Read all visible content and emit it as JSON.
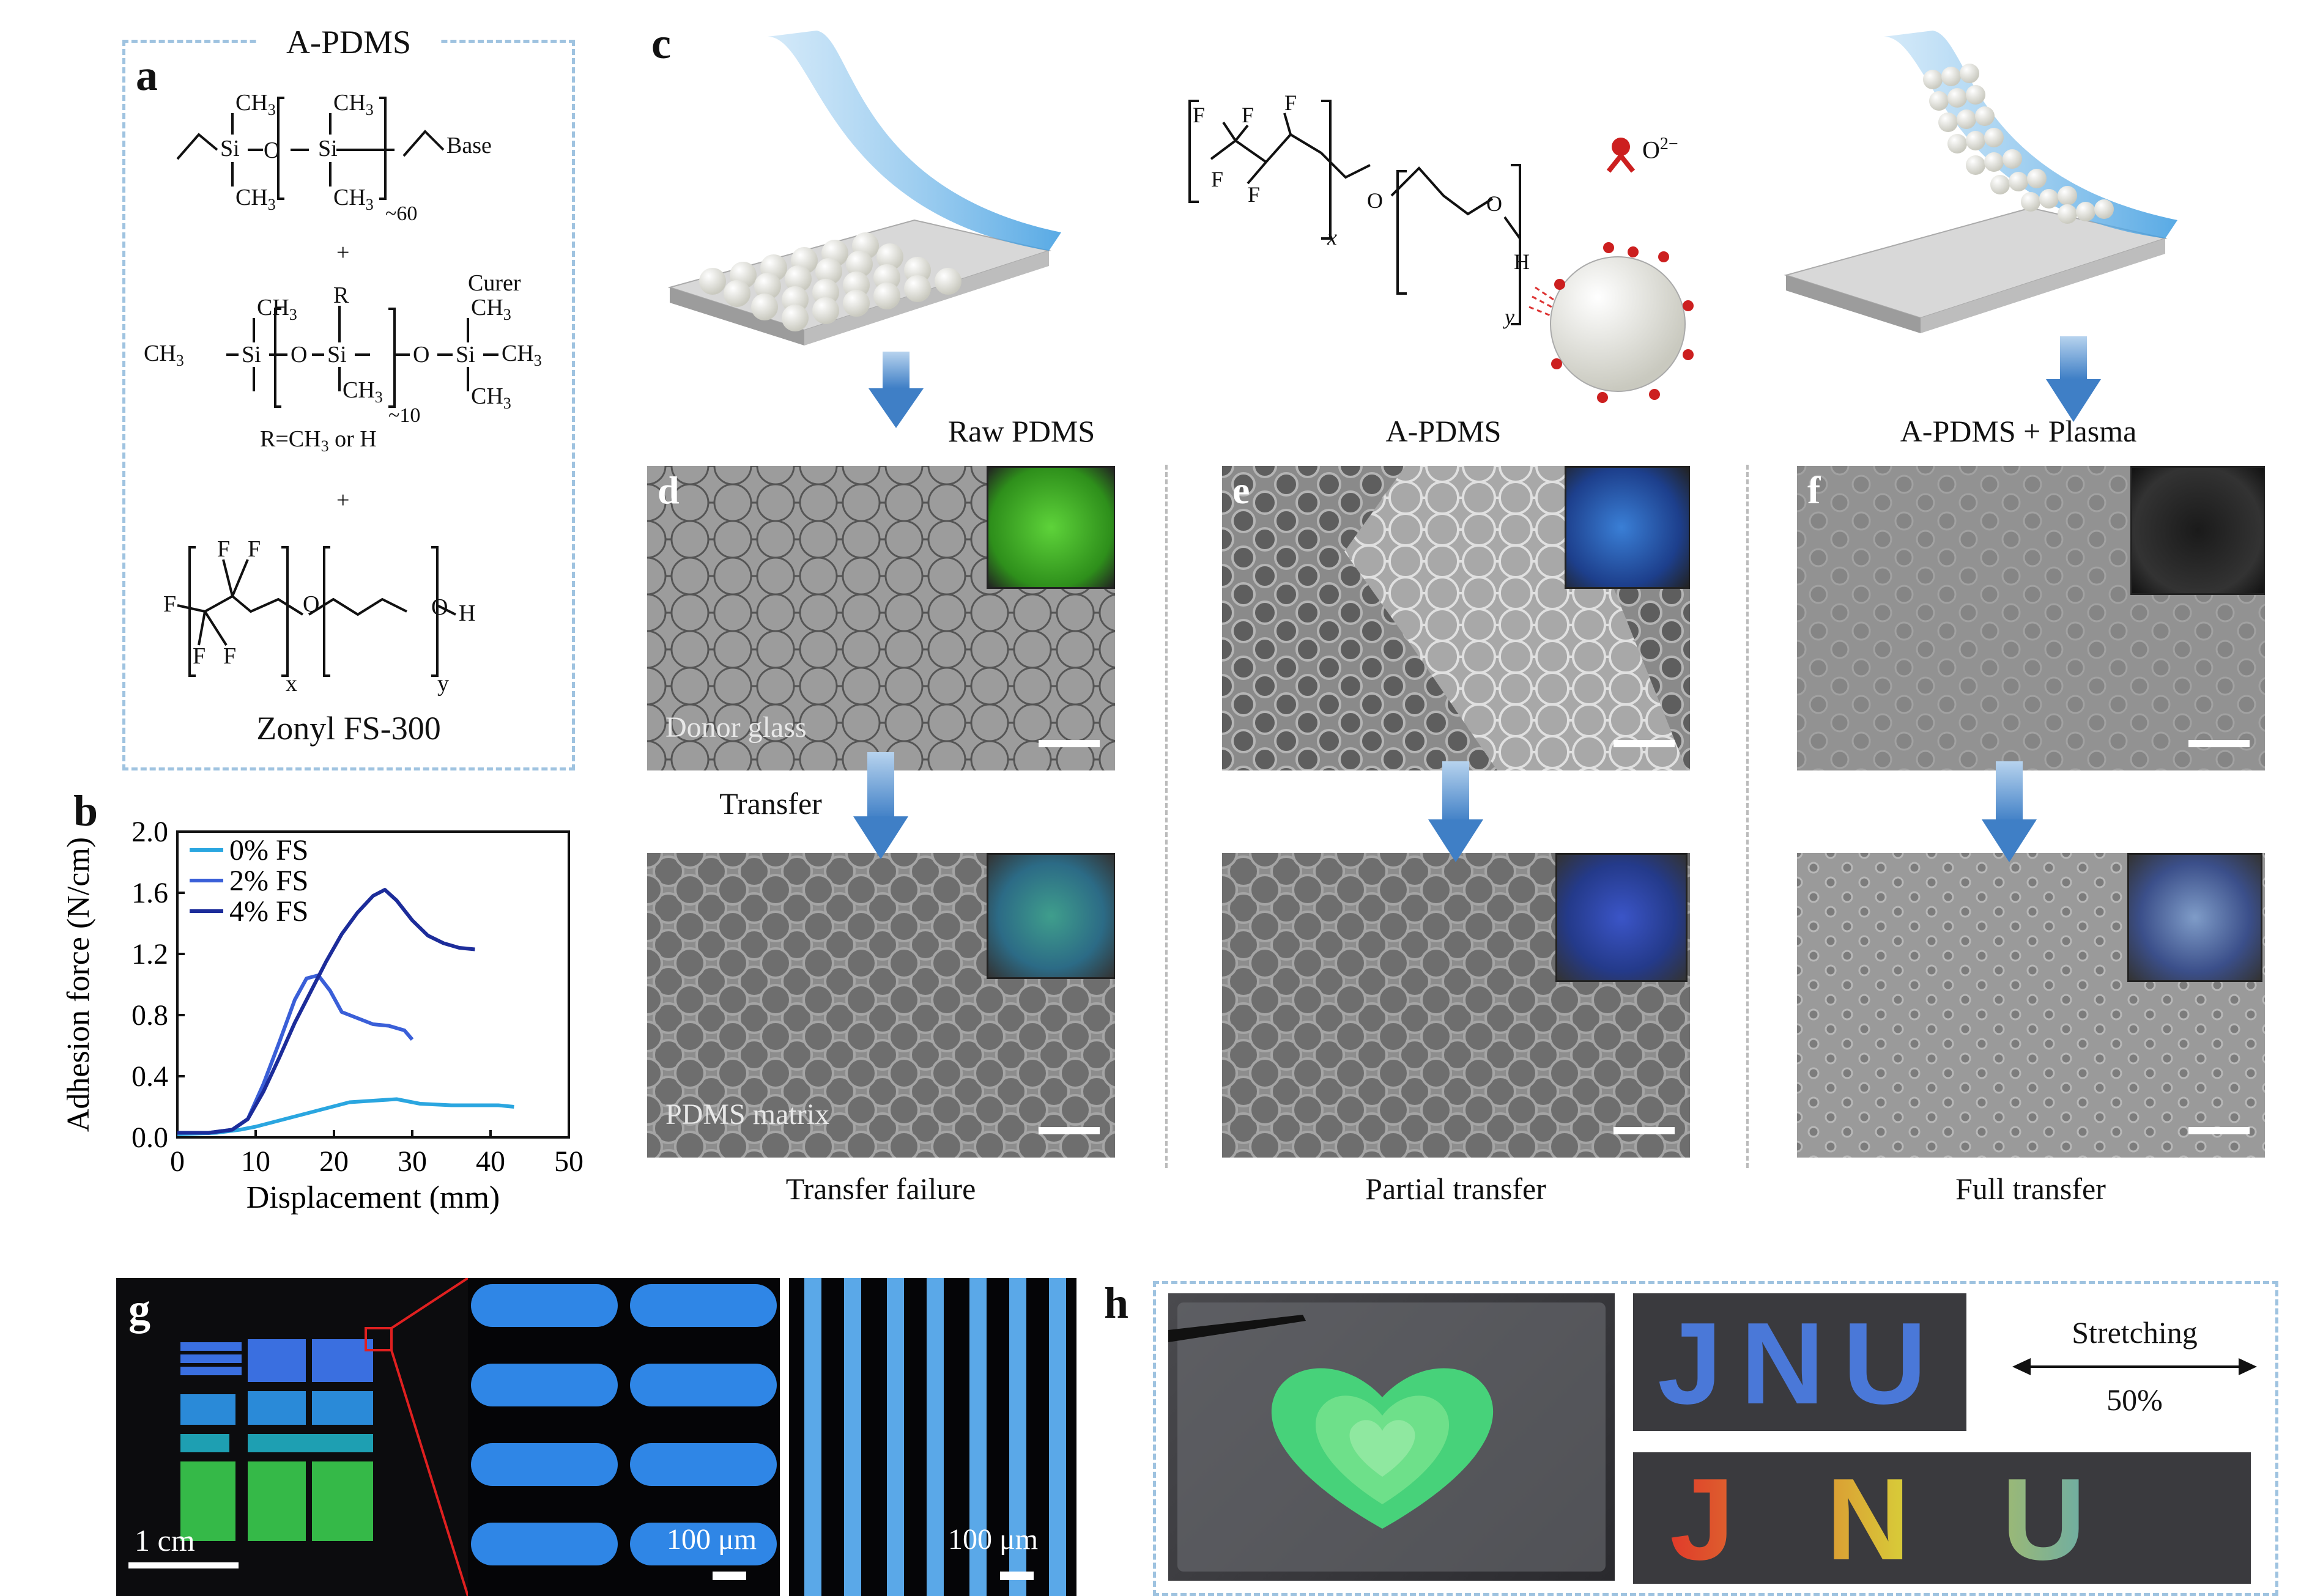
{
  "panels": {
    "a": {
      "letter": "a",
      "box_title": "A-PDMS",
      "base_label": "Base",
      "curer_label": "Curer",
      "plus": "+",
      "ch3": "CH",
      "three": "3",
      "si": "Si",
      "o": "O",
      "n60": "~60",
      "n10": "~10",
      "r": "R",
      "r_def": "R=CH",
      "r_def2": " or H",
      "f": "F",
      "h": "H",
      "x": "x",
      "y": "y",
      "fs_name": "Zonyl FS-300"
    },
    "b": {
      "letter": "b"
    },
    "c": {
      "letter": "c",
      "ion": "O",
      "ion_sup": "2−",
      "fx": "x",
      "fy": "y",
      "fh": "H"
    },
    "d": {
      "letter": "d",
      "title": "Raw PDMS",
      "label_top": "Donor glass",
      "label_bottom": "PDMS matrix",
      "arrow_label": "Transfer",
      "result": "Transfer failure"
    },
    "e": {
      "letter": "e",
      "title": "A-PDMS",
      "result": "Partial transfer"
    },
    "f": {
      "letter": "f",
      "title": "A-PDMS + Plasma",
      "result": "Full transfer"
    },
    "g": {
      "letter": "g",
      "scale1": "1 cm",
      "scale2": "100 μm",
      "scale3": "100 μm"
    },
    "h": {
      "letter": "h",
      "word": "JNU",
      "stretch_label": "Stretching",
      "stretch_value": "50%"
    }
  },
  "chart_data": {
    "type": "line",
    "xlabel": "Displacement (mm)",
    "ylabel": "Adhesion force (N/cm)",
    "xlim": [
      0,
      50
    ],
    "ylim": [
      0,
      2.0
    ],
    "xticks": [
      0,
      10,
      20,
      30,
      40,
      50
    ],
    "yticks": [
      0.0,
      0.4,
      0.8,
      1.2,
      1.6,
      2.0
    ],
    "ytick_labels": [
      "0.0",
      "0.4",
      "0.8",
      "1.2",
      "1.6",
      "2.0"
    ],
    "legend_position": "top-left",
    "series": [
      {
        "name": "0% FS",
        "color": "#2aa6e0",
        "x": [
          0,
          5,
          8,
          10,
          13,
          16,
          19,
          22,
          25,
          28,
          31,
          35,
          38,
          41,
          43
        ],
        "y": [
          0.02,
          0.03,
          0.05,
          0.07,
          0.11,
          0.15,
          0.19,
          0.23,
          0.24,
          0.25,
          0.22,
          0.21,
          0.21,
          0.21,
          0.2
        ]
      },
      {
        "name": "2% FS",
        "color": "#3a5fd8",
        "x": [
          0,
          4,
          7,
          9,
          11,
          13,
          15,
          16.5,
          18,
          19.5,
          21,
          23,
          25,
          27,
          29,
          30
        ],
        "y": [
          0.03,
          0.03,
          0.05,
          0.12,
          0.35,
          0.62,
          0.9,
          1.04,
          1.06,
          0.96,
          0.82,
          0.78,
          0.74,
          0.73,
          0.7,
          0.64
        ]
      },
      {
        "name": "4% FS",
        "color": "#1c2c9a",
        "x": [
          0,
          4,
          7,
          9,
          11,
          13,
          15,
          17,
          19,
          21,
          23,
          25,
          26.5,
          28,
          30,
          32,
          34,
          36,
          38
        ],
        "y": [
          0.03,
          0.03,
          0.05,
          0.12,
          0.3,
          0.52,
          0.75,
          0.95,
          1.15,
          1.33,
          1.47,
          1.58,
          1.62,
          1.55,
          1.42,
          1.32,
          1.27,
          1.24,
          1.23
        ]
      }
    ]
  },
  "colors": {
    "dash_box": "#9fc3e0",
    "arrow": "#4a86c8"
  }
}
